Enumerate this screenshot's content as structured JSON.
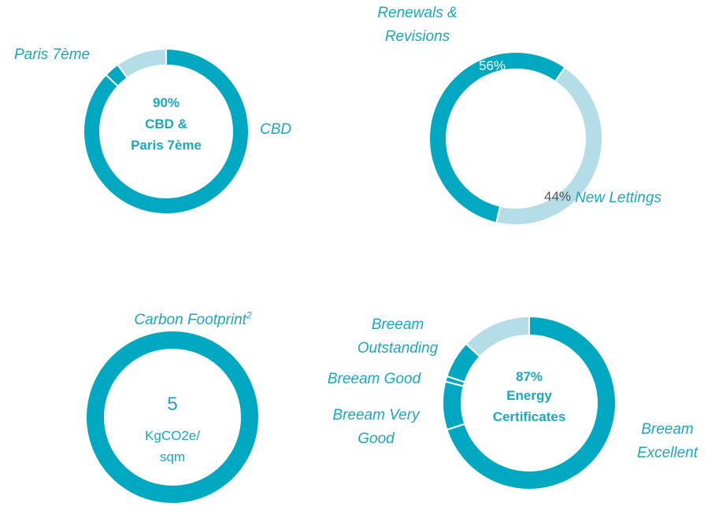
{
  "chart_data": [
    {
      "type": "donut",
      "categories": [
        "CBD",
        "Paris 7ème",
        null
      ],
      "values": [
        87,
        3,
        10
      ],
      "colors": [
        "#00a9c1",
        "#00a9c1",
        "#b5dde8"
      ],
      "center_text": [
        "90%",
        "CBD &",
        "Paris 7ème"
      ]
    },
    {
      "type": "donut",
      "categories": [
        "Renewals & Revisions",
        "New Lettings"
      ],
      "values": [
        56,
        44
      ],
      "value_labels": [
        "56%",
        "44%"
      ],
      "colors": [
        "#00a9c1",
        "#b5dde8"
      ]
    },
    {
      "type": "donut",
      "title": "Carbon Footprint",
      "title_superscript": "2",
      "categories": [
        null
      ],
      "values": [
        5
      ],
      "colors": [
        "#00a9c1"
      ],
      "unit_lines": [
        "KgCO2e/",
        "sqm"
      ]
    },
    {
      "type": "donut",
      "categories": [
        "Breeam Excellent",
        "Breeam Very Good",
        "Breeam Good",
        "Breeam Outstanding",
        null
      ],
      "values": [
        70,
        9,
        1,
        7,
        13
      ],
      "colors": [
        "#00a9c1",
        "#00a9c1",
        "#00a9c1",
        "#00a9c1",
        "#b5dde8"
      ],
      "center_text": [
        "87%",
        "Energy Certificates"
      ]
    }
  ]
}
